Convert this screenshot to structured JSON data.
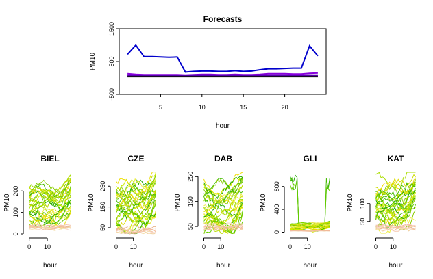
{
  "chart_data": [
    {
      "id": "forecasts",
      "type": "line",
      "title": "Forecasts",
      "xlabel": "hour",
      "ylabel": "PM10",
      "xlim": [
        0,
        25
      ],
      "ylim": [
        -500,
        1500
      ],
      "xticks": [
        5,
        10,
        15,
        20
      ],
      "yticks": [
        -500,
        500,
        1500
      ],
      "grid": false,
      "legend": "none",
      "x": [
        1,
        2,
        3,
        4,
        5,
        6,
        7,
        8,
        9,
        10,
        11,
        12,
        13,
        14,
        15,
        16,
        17,
        18,
        19,
        20,
        21,
        22,
        23,
        24
      ],
      "series": [
        {
          "color": "#0000cc",
          "width": 2,
          "values": [
            720,
            1000,
            650,
            650,
            640,
            630,
            640,
            180,
            200,
            210,
            210,
            200,
            200,
            220,
            200,
            210,
            250,
            280,
            280,
            290,
            300,
            300,
            980,
            670
          ]
        },
        {
          "color": "#8800dd",
          "width": 2,
          "values": [
            130,
            110,
            100,
            100,
            100,
            100,
            100,
            90,
            100,
            110,
            110,
            100,
            100,
            110,
            100,
            100,
            110,
            130,
            130,
            130,
            120,
            120,
            140,
            150
          ]
        },
        {
          "color": "#cc22cc",
          "width": 2,
          "values": [
            60,
            60,
            60,
            60,
            60,
            60,
            60,
            60,
            60,
            60,
            60,
            60,
            60,
            60,
            60,
            60,
            60,
            60,
            60,
            60,
            60,
            60,
            60,
            60
          ]
        },
        {
          "color": "#5500aa",
          "width": 3,
          "values": [
            80,
            70,
            70,
            70,
            70,
            70,
            70,
            70,
            80,
            80,
            80,
            70,
            80,
            80,
            70,
            70,
            80,
            80,
            80,
            80,
            70,
            70,
            80,
            80
          ]
        },
        {
          "color": "#111111",
          "width": 2,
          "values": [
            40,
            40,
            40,
            40,
            40,
            40,
            40,
            40,
            40,
            40,
            40,
            40,
            40,
            40,
            40,
            40,
            40,
            40,
            40,
            40,
            40,
            40,
            40,
            40
          ]
        }
      ]
    },
    {
      "id": "biel",
      "type": "line",
      "title": "BIEL",
      "xlabel": "hour",
      "ylabel": "PM10",
      "xlim": [
        -1,
        24
      ],
      "ylim": [
        0,
        290
      ],
      "xticks": [
        0,
        10
      ],
      "yticks": [
        0,
        100,
        200
      ],
      "ytick_labels": [
        "0",
        "100",
        "200"
      ],
      "base": 130,
      "amp": 110,
      "low": 20,
      "nlines": 28
    },
    {
      "id": "cze",
      "type": "line",
      "title": "CZE",
      "xlabel": "hour",
      "ylabel": "PM10",
      "xlim": [
        -1,
        24
      ],
      "ylim": [
        20,
        320
      ],
      "xticks": [
        0,
        10
      ],
      "yticks": [
        50,
        150,
        250
      ],
      "ytick_labels": [
        "50",
        "150",
        "250"
      ],
      "base": 140,
      "amp": 140,
      "low": 30,
      "nlines": 28
    },
    {
      "id": "dab",
      "type": "line",
      "title": "DAB",
      "xlabel": "hour",
      "ylabel": "PM10",
      "xlim": [
        -1,
        24
      ],
      "ylim": [
        20,
        270
      ],
      "xticks": [
        0,
        10
      ],
      "yticks": [
        50,
        150,
        250
      ],
      "ytick_labels": [
        "50",
        "150",
        "250"
      ],
      "base": 130,
      "amp": 110,
      "low": 40,
      "nlines": 28
    },
    {
      "id": "gli",
      "type": "line",
      "title": "GLI",
      "xlabel": "hour",
      "ylabel": "PM10",
      "xlim": [
        -1,
        24
      ],
      "ylim": [
        -30,
        1060
      ],
      "xticks": [
        0,
        10
      ],
      "yticks": [
        0,
        400,
        800
      ],
      "ytick_labels": [
        "0",
        "400",
        "800"
      ],
      "base": 90,
      "amp": 80,
      "low": 20,
      "nlines": 24,
      "spike": true
    },
    {
      "id": "kat",
      "type": "line",
      "title": "KAT",
      "xlabel": "hour",
      "ylabel": "PM10",
      "xlim": [
        -1,
        24
      ],
      "ylim": [
        15,
        190
      ],
      "xticks": [
        0,
        10
      ],
      "yticks": [
        50,
        100
      ],
      "ytick_labels": [
        "50",
        "100"
      ],
      "base": 100,
      "amp": 80,
      "low": 25,
      "nlines": 28
    }
  ]
}
